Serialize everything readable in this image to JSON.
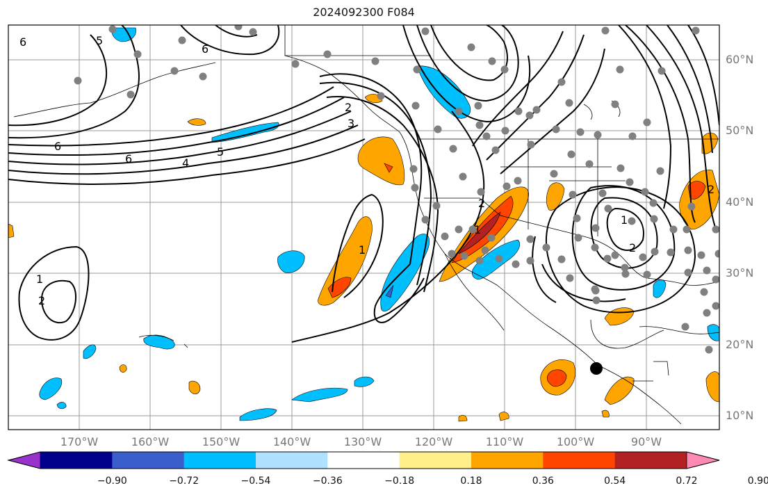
{
  "title": "2024092300 F084",
  "lat_labels": [
    {
      "text": "60°N",
      "lat": 60
    },
    {
      "text": "50°N",
      "lat": 50
    },
    {
      "text": "40°N",
      "lat": 40
    },
    {
      "text": "30°N",
      "lat": 30
    },
    {
      "text": "20°N",
      "lat": 20
    },
    {
      "text": "10°N",
      "lat": 10
    }
  ],
  "lon_labels": [
    {
      "text": "170°W",
      "lon": -170
    },
    {
      "text": "160°W",
      "lon": -160
    },
    {
      "text": "150°W",
      "lon": -150
    },
    {
      "text": "140°W",
      "lon": -140
    },
    {
      "text": "130°W",
      "lon": -130
    },
    {
      "text": "120°W",
      "lon": -120
    },
    {
      "text": "110°W",
      "lon": -110
    },
    {
      "text": "100°W",
      "lon": -100
    },
    {
      "text": "90°W",
      "lon": -90
    }
  ],
  "contour_labels": [
    "6",
    "5",
    "6",
    "6",
    "6",
    "4",
    "5",
    "3",
    "2",
    "2",
    "1",
    "1",
    "2",
    "1",
    "2",
    "1",
    "2"
  ],
  "colorbar": {
    "colors": [
      "#9932cc",
      "#00008b",
      "#3a5fcd",
      "#00bfff",
      "#b0e2ff",
      "#ffffff",
      "#fff08b",
      "#ffa500",
      "#ff4500",
      "#b22222",
      "#ff88b4"
    ],
    "tick_labels": [
      "−0.90",
      "−0.72",
      "−0.54",
      "−0.36",
      "−0.18",
      "0.18",
      "0.36",
      "0.54",
      "0.72",
      "0.90"
    ]
  },
  "marker_color": "#808080",
  "target_marker_color": "#000000"
}
